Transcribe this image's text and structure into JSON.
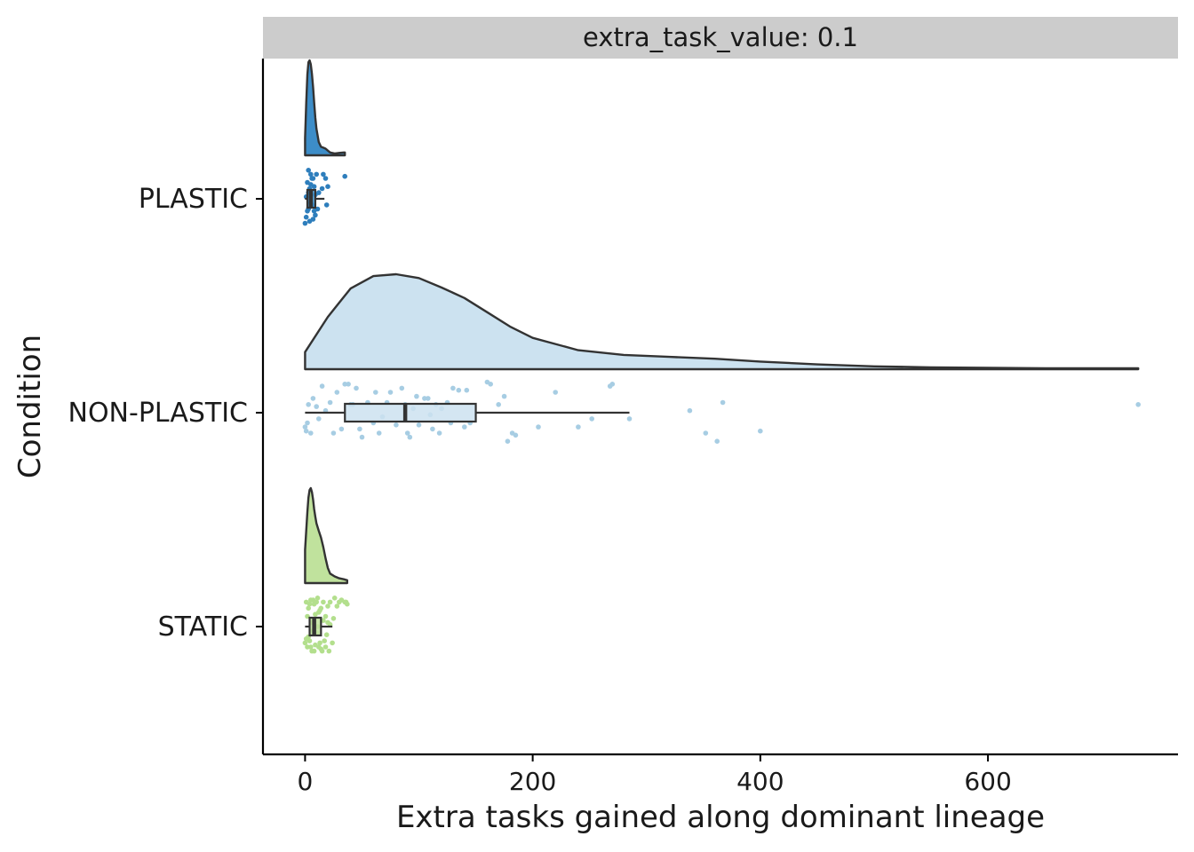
{
  "chart_data": {
    "type": "raincloud",
    "facet_label": "extra_task_value: 0.1",
    "xlabel": "Extra tasks gained along dominant lineage",
    "ylabel": "Condition",
    "xlim": [
      -37,
      767
    ],
    "x_ticks": [
      0,
      200,
      400,
      600
    ],
    "x_tick_labels": [
      "0",
      "200",
      "400",
      "600"
    ],
    "grid": false,
    "legend": "none",
    "categories": [
      "PLASTIC",
      "NON-PLASTIC",
      "STATIC"
    ],
    "series": [
      {
        "name": "PLASTIC",
        "color": "#2e7ebc",
        "density_fill": "#3d8dc8",
        "box": {
          "min": 0,
          "q1": 2,
          "median": 5,
          "q3": 9,
          "max": 17
        },
        "density": {
          "x": [
            0,
            1,
            2,
            3,
            4,
            5,
            6,
            7,
            8,
            9,
            10,
            12,
            14,
            16,
            18,
            20,
            22,
            26,
            30,
            34,
            35
          ],
          "y": [
            0.18,
            0.55,
            0.85,
            0.98,
            1.0,
            0.96,
            0.86,
            0.72,
            0.56,
            0.4,
            0.28,
            0.14,
            0.09,
            0.08,
            0.07,
            0.05,
            0.03,
            0.02,
            0.025,
            0.03,
            0.03
          ]
        },
        "points": [
          [
            0,
            -0.12
          ],
          [
            1,
            -0.09
          ],
          [
            2,
            -0.06
          ],
          [
            3,
            0.03
          ],
          [
            4,
            -0.11
          ],
          [
            5,
            0.12
          ],
          [
            6,
            -0.03
          ],
          [
            7,
            0.1
          ],
          [
            8,
            0.06
          ],
          [
            9,
            -0.08
          ],
          [
            2,
            0.08
          ],
          [
            3,
            0.14
          ],
          [
            4,
            0.05
          ],
          [
            5,
            -0.02
          ],
          [
            6,
            0.1
          ],
          [
            7,
            -0.1
          ],
          [
            8,
            -0.06
          ],
          [
            10,
            0.12
          ],
          [
            11,
            -0.05
          ],
          [
            12,
            0.03
          ],
          [
            15,
            0.05
          ],
          [
            16,
            0.12
          ],
          [
            18,
            0.1
          ],
          [
            19,
            -0.03
          ],
          [
            20,
            0.06
          ],
          [
            35,
            0.11
          ],
          [
            1,
            0.01
          ],
          [
            3,
            -0.05
          ],
          [
            9,
            0.02
          ],
          [
            5,
            0.07
          ]
        ]
      },
      {
        "name": "NON-PLASTIC",
        "color": "#a7cde3",
        "density_fill": "#cce2f0",
        "box": {
          "min": 0,
          "q1": 35,
          "median": 88,
          "q3": 150,
          "max": 285
        },
        "density": {
          "x": [
            0,
            20,
            40,
            60,
            80,
            100,
            120,
            140,
            160,
            180,
            200,
            240,
            280,
            320,
            360,
            400,
            450,
            500,
            550,
            600,
            650,
            700,
            732
          ],
          "y": [
            0.18,
            0.55,
            0.85,
            0.98,
            1.0,
            0.96,
            0.86,
            0.75,
            0.6,
            0.45,
            0.33,
            0.2,
            0.15,
            0.13,
            0.11,
            0.08,
            0.05,
            0.03,
            0.02,
            0.015,
            0.01,
            0.01,
            0.01
          ]
        },
        "points": [
          [
            0,
            -0.07
          ],
          [
            1,
            -0.09
          ],
          [
            2,
            -0.05
          ],
          [
            3,
            0.04
          ],
          [
            5,
            -0.1
          ],
          [
            7,
            0.07
          ],
          [
            10,
            0.03
          ],
          [
            12,
            -0.03
          ],
          [
            15,
            0.13
          ],
          [
            18,
            0.01
          ],
          [
            22,
            0.05
          ],
          [
            25,
            -0.1
          ],
          [
            28,
            0.1
          ],
          [
            32,
            -0.08
          ],
          [
            35,
            0.14
          ],
          [
            38,
            0.14
          ],
          [
            40,
            0.04
          ],
          [
            42,
            0.04
          ],
          [
            45,
            0.12
          ],
          [
            48,
            -0.08
          ],
          [
            50,
            -0.12
          ],
          [
            55,
            0.05
          ],
          [
            60,
            -0.05
          ],
          [
            62,
            0.1
          ],
          [
            65,
            -0.1
          ],
          [
            68,
            -0.02
          ],
          [
            72,
            0.05
          ],
          [
            75,
            0.1
          ],
          [
            80,
            -0.06
          ],
          [
            85,
            0.12
          ],
          [
            88,
            0.04
          ],
          [
            90,
            -0.1
          ],
          [
            92,
            -0.12
          ],
          [
            95,
            0.02
          ],
          [
            98,
            0.08
          ],
          [
            100,
            -0.06
          ],
          [
            105,
            0.07
          ],
          [
            108,
            0.07
          ],
          [
            110,
            -0.01
          ],
          [
            112,
            -0.08
          ],
          [
            115,
            0.04
          ],
          [
            118,
            -0.1
          ],
          [
            120,
            0.02
          ],
          [
            125,
            0.05
          ],
          [
            128,
            -0.05
          ],
          [
            130,
            0.12
          ],
          [
            135,
            0.11
          ],
          [
            140,
            -0.07
          ],
          [
            142,
            0.11
          ],
          [
            145,
            -0.05
          ],
          [
            160,
            0.15
          ],
          [
            163,
            0.14
          ],
          [
            170,
            0.04
          ],
          [
            175,
            0.08
          ],
          [
            178,
            -0.14
          ],
          [
            182,
            -0.1
          ],
          [
            185,
            -0.11
          ],
          [
            205,
            -0.07
          ],
          [
            220,
            0.1
          ],
          [
            240,
            -0.07
          ],
          [
            252,
            -0.03
          ],
          [
            268,
            0.13
          ],
          [
            270,
            0.14
          ],
          [
            285,
            -0.03
          ],
          [
            338,
            0.01
          ],
          [
            352,
            -0.1
          ],
          [
            362,
            -0.14
          ],
          [
            367,
            0.05
          ],
          [
            400,
            -0.09
          ],
          [
            732,
            0.04
          ]
        ]
      },
      {
        "name": "STATIC",
        "color": "#b3df8d",
        "density_fill": "#c0e29d",
        "box": {
          "min": 0,
          "q1": 4,
          "median": 8,
          "q3": 14,
          "max": 24
        },
        "density": {
          "x": [
            0,
            1,
            2,
            3,
            4,
            5,
            6,
            7,
            8,
            9,
            10,
            12,
            14,
            16,
            18,
            20,
            22,
            26,
            30,
            34,
            37
          ],
          "y": [
            0.35,
            0.55,
            0.75,
            0.9,
            0.98,
            1.0,
            0.96,
            0.88,
            0.78,
            0.7,
            0.63,
            0.55,
            0.48,
            0.38,
            0.26,
            0.16,
            0.1,
            0.07,
            0.05,
            0.04,
            0.03
          ]
        },
        "points": [
          [
            0,
            -0.08
          ],
          [
            1,
            0.12
          ],
          [
            2,
            0.05
          ],
          [
            3,
            -0.05
          ],
          [
            4,
            0.11
          ],
          [
            5,
            -0.1
          ],
          [
            6,
            0.02
          ],
          [
            7,
            0.13
          ],
          [
            8,
            -0.12
          ],
          [
            9,
            0.06
          ],
          [
            10,
            -0.03
          ],
          [
            11,
            0.14
          ],
          [
            12,
            0.07
          ],
          [
            13,
            -0.08
          ],
          [
            14,
            0.09
          ],
          [
            15,
            -0.12
          ],
          [
            16,
            0.12
          ],
          [
            17,
            -0.07
          ],
          [
            18,
            0.05
          ],
          [
            19,
            -0.04
          ],
          [
            20,
            0.1
          ],
          [
            21,
            -0.12
          ],
          [
            22,
            0.12
          ],
          [
            24,
            -0.08
          ],
          [
            25,
            0.04
          ],
          [
            26,
            0.14
          ],
          [
            28,
            0.1
          ],
          [
            30,
            0.12
          ],
          [
            32,
            0.13
          ],
          [
            35,
            0.12
          ],
          [
            36,
            0.12
          ],
          [
            37,
            0.11
          ],
          [
            2,
            -0.1
          ],
          [
            4,
            -0.07
          ],
          [
            6,
            -0.12
          ],
          [
            8,
            0.11
          ],
          [
            10,
            0.12
          ],
          [
            3,
            0.09
          ],
          [
            5,
            0.13
          ],
          [
            7,
            -0.02
          ],
          [
            12,
            -0.1
          ],
          [
            14,
            -0.11
          ],
          [
            16,
            0.03
          ],
          [
            18,
            -0.1
          ],
          [
            20,
            0.02
          ],
          [
            22,
            0.01
          ],
          [
            1,
            -0.06
          ],
          [
            9,
            -0.09
          ],
          [
            11,
            0.0
          ],
          [
            13,
            0.08
          ]
        ]
      }
    ]
  }
}
